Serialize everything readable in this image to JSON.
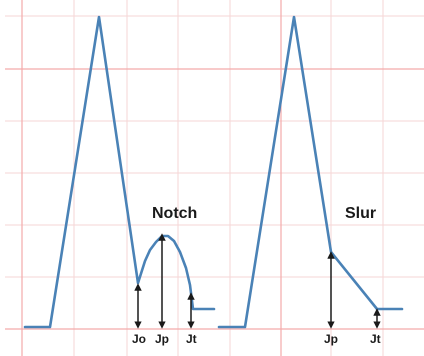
{
  "panels": {
    "notch": {
      "title": "Notch",
      "labels": {
        "jo": "Jo",
        "jp": "Jp",
        "jt": "Jt"
      }
    },
    "slur": {
      "title": "Slur",
      "labels": {
        "jp": "Jp",
        "jt": "Jt"
      }
    }
  },
  "colors": {
    "waveform": "#4a82b6",
    "arrow": "#1a1a1a",
    "grid_minor": "#f6d5d5",
    "grid_major": "#f4aaaa"
  }
}
